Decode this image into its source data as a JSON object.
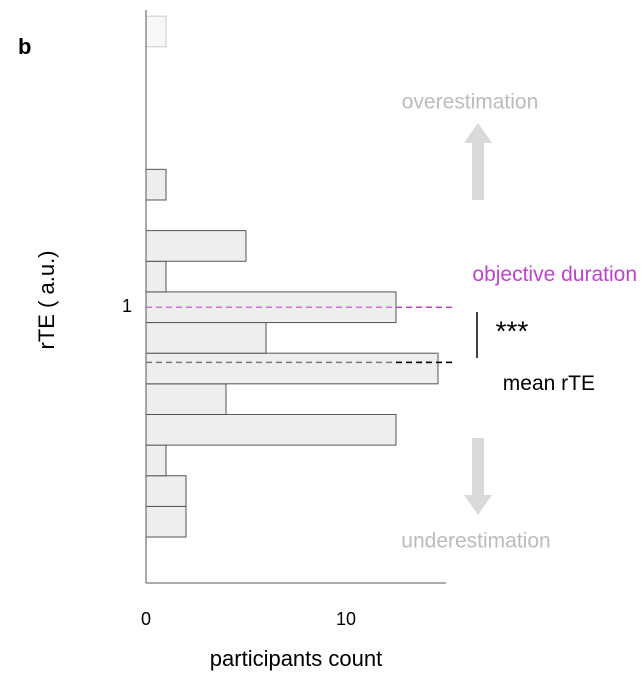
{
  "chart_data": {
    "type": "histogram",
    "orientation": "horizontal",
    "panel_label": "b",
    "xlabel": "participants count",
    "ylabel": "rTE ( a.u.)",
    "bins": [
      0.25,
      0.35,
      0.45,
      0.55,
      0.65,
      0.75,
      0.85,
      0.95,
      1.05,
      1.15,
      1.25,
      1.35,
      1.45,
      1.55,
      1.65,
      1.75,
      1.85,
      1.95
    ],
    "counts": [
      2,
      2,
      1,
      12.5,
      4,
      14.6,
      6,
      12.5,
      1,
      5,
      0,
      1,
      0,
      0,
      0,
      0,
      1
    ],
    "colors": [
      "#eeeeee",
      "#eeeeee",
      "#eeeeee",
      "#eeeeee",
      "#eeeeee",
      "#eeeeee",
      "#eeeeee",
      "#eeeeee",
      "#eeeeee",
      "#eeeeee",
      "#eeeeee",
      "#eeeeee",
      "#eeeeee",
      "#eeeeee",
      "#eeeeee",
      "#eeeeee",
      "#f7f7f7"
    ],
    "xlim": [
      0,
      15
    ],
    "xticks": [
      0,
      10
    ],
    "ylim": [
      0.1,
      1.97
    ],
    "yticks": [
      1
    ],
    "reference_lines": [
      {
        "value": 1,
        "label": "objective duration",
        "color": "#c040d0"
      },
      {
        "value": 0.82,
        "label": "mean rTE",
        "color": "#000000"
      }
    ],
    "significance": "***",
    "annotations": {
      "up": "overestimation",
      "down": "underestimation"
    }
  }
}
